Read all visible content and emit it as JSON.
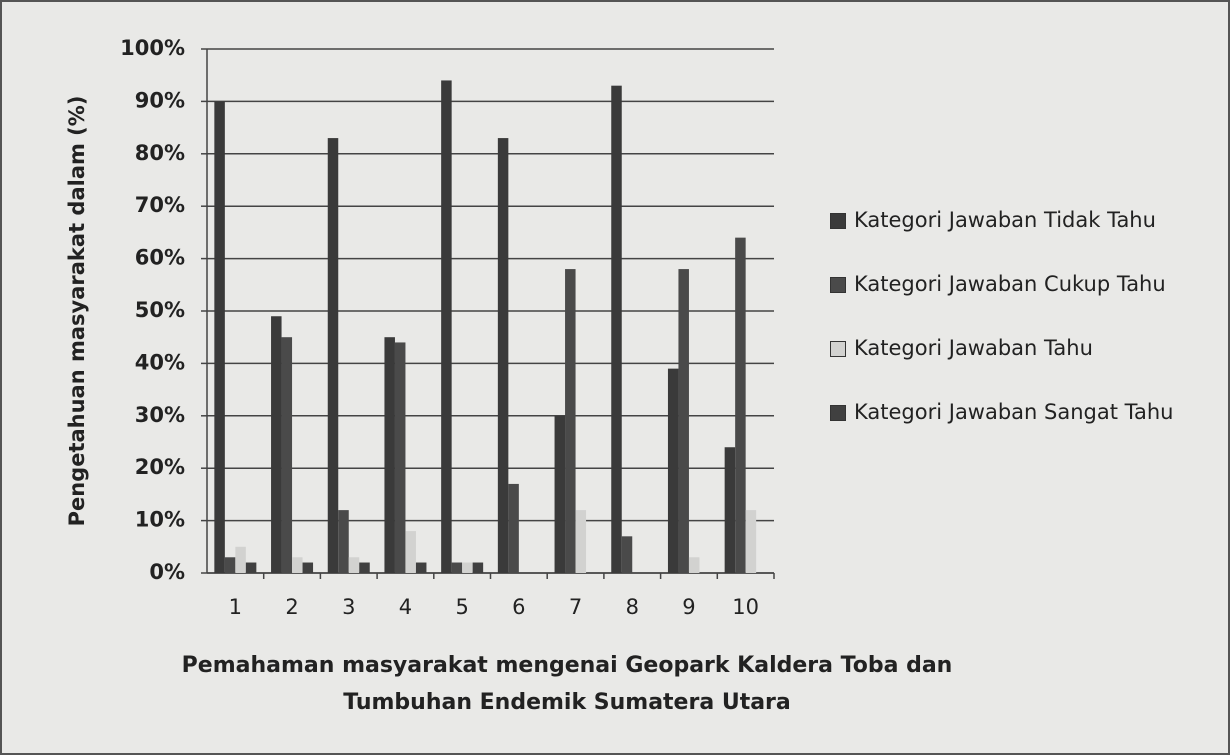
{
  "chart_data": {
    "type": "bar",
    "y_label": "Pengetahuan masyarakat dalam (%)",
    "x_label": "Pemahaman masyarakat mengenai Geopark Kaldera Toba dan Tumbuhan Endemik Sumatera Utara",
    "categories": [
      "1",
      "2",
      "3",
      "4",
      "5",
      "6",
      "7",
      "8",
      "9",
      "10"
    ],
    "series": [
      {
        "name": "Kategori Jawaban  Tidak Tahu",
        "color": "#3a3a3a",
        "values": [
          90,
          49,
          83,
          45,
          94,
          83,
          30,
          93,
          39,
          24
        ]
      },
      {
        "name": "Kategori Jawaban  Cukup Tahu",
        "color": "#4a4a4a",
        "values": [
          3,
          45,
          12,
          44,
          2,
          17,
          58,
          7,
          58,
          64
        ]
      },
      {
        "name": "Kategori Jawaban  Tahu",
        "color": "#d2d2d0",
        "values": [
          5,
          3,
          3,
          8,
          2,
          0,
          12,
          0,
          3,
          12
        ]
      },
      {
        "name": "Kategori Jawaban  Sangat Tahu",
        "color": "#404040",
        "values": [
          2,
          2,
          2,
          2,
          2,
          0,
          0,
          0,
          0,
          0
        ]
      }
    ],
    "ylim": [
      0,
      100
    ],
    "yticks": [
      {
        "value": 0,
        "label": "0%"
      },
      {
        "value": 10,
        "label": "10%"
      },
      {
        "value": 20,
        "label": "20%"
      },
      {
        "value": 30,
        "label": "30%"
      },
      {
        "value": 40,
        "label": "40%"
      },
      {
        "value": 50,
        "label": "50%"
      },
      {
        "value": 60,
        "label": "60%"
      },
      {
        "value": 70,
        "label": "70%"
      },
      {
        "value": 80,
        "label": "80%"
      },
      {
        "value": 90,
        "label": "90%"
      },
      {
        "value": 100,
        "label": "100%"
      }
    ],
    "grid": true
  }
}
